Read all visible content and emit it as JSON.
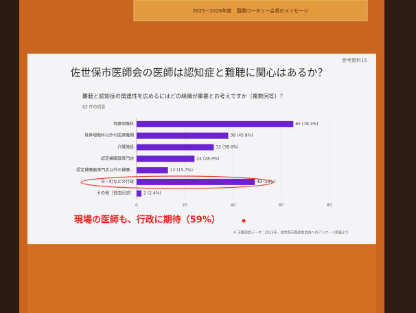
{
  "slide": {
    "banner": "2025－2026年度　国際ロータリー会長のメッセージ",
    "reference": "参考資料15",
    "footnote": "※ 市医師会データ：2025年、佐世保市医師会会員へのアンケート調査より"
  },
  "chart_data": {
    "type": "bar",
    "orientation": "horizontal",
    "title": "佐世保市医師会の医師は認知症と難聴に関心はあるか？",
    "subtitle": "難聴と認知症の関連性を広めるにはどの組織が重要とお考えですか（複数回答）？",
    "note": "83 件の回答",
    "categories": [
      "耳鼻咽喉科",
      "耳鼻咽喉科以外の医療機関",
      "介護施設",
      "認定補聴器専門店",
      "認定補聴器専門店以外の補聴...",
      "市・町などの行政",
      "その他（自由記述）"
    ],
    "values": [
      65,
      38,
      32,
      24,
      13,
      49,
      2
    ],
    "value_labels": [
      "65 (78.3%)",
      "38 (45.8%)",
      "32 (38.6%)",
      "24 (28.9%)",
      "13 (15.7%)",
      "49 (59%)",
      "2 (2.4%)"
    ],
    "color": "#6b22cf",
    "xlim": [
      0,
      80
    ],
    "xticks": [
      0,
      20,
      40,
      60,
      80
    ],
    "grid": true,
    "annotation": "現場の医師も、行政に期待（59%）"
  }
}
